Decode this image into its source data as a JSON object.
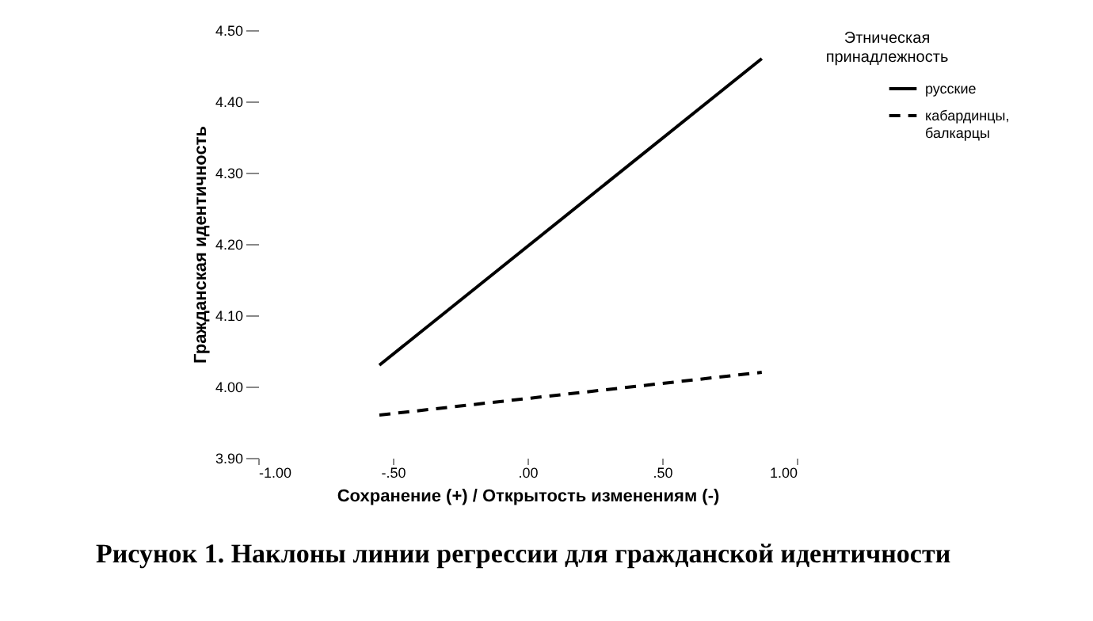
{
  "chart_data": {
    "type": "line",
    "xlabel": "Сохранение (+) / Открытость изменениям (-)",
    "ylabel": "Гражданская идентичность",
    "legend_title": "Этническая принадлежность",
    "legend": "top right",
    "grid": false,
    "marker": "none",
    "x": [
      -0.55,
      0.87
    ],
    "series": [
      {
        "name": "русские",
        "color": "#000000",
        "line_style": "solid",
        "values": [
          4.03,
          4.46
        ]
      },
      {
        "name": "кабардинцы, балкарцы",
        "color": "#000000",
        "line_style": "dashed",
        "values": [
          3.96,
          4.02
        ]
      }
    ],
    "xlim": [
      -1,
      1
    ],
    "xticks": [
      {
        "value": -1,
        "label": "-1.00"
      },
      {
        "value": -0.5,
        "label": "-.50"
      },
      {
        "value": 0,
        "label": ".00"
      },
      {
        "value": 0.5,
        "label": ".50"
      },
      {
        "value": 1,
        "label": "1.00"
      }
    ],
    "ylim": [
      3.9,
      4.5
    ],
    "yticks": [
      {
        "value": 3.9,
        "label": "3.90"
      },
      {
        "value": 4.0,
        "label": "4.00"
      },
      {
        "value": 4.1,
        "label": "4.10"
      },
      {
        "value": 4.2,
        "label": "4.20"
      },
      {
        "value": 4.3,
        "label": "4.30"
      },
      {
        "value": 4.4,
        "label": "4.40"
      },
      {
        "value": 4.5,
        "label": "4.50"
      }
    ],
    "annotations": [
      "Рисунок 1. Наклоны линии регрессии для гражданской идентичности"
    ]
  }
}
